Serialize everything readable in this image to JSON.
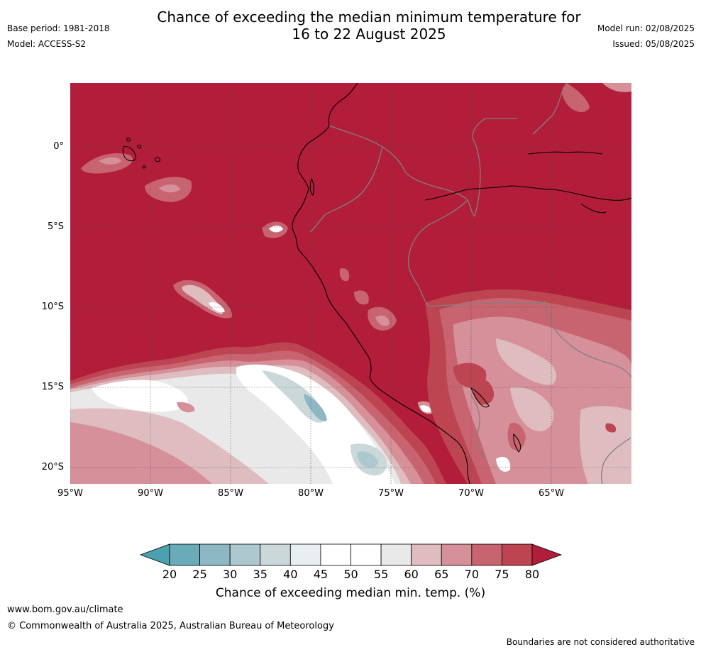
{
  "title_line1": "Chance of exceeding the median minimum temperature for",
  "title_line2": "16 to 22 August 2025",
  "base_period": "Base period: 1981-2018",
  "model": "Model: ACCESS-S2",
  "model_run": "Model run: 02/08/2025",
  "issued": "Issued: 05/08/2025",
  "map": {
    "lat_ticks": [
      "0°",
      "5°S",
      "10°S",
      "15°S",
      "20°S"
    ],
    "lon_ticks": [
      "95°W",
      "90°W",
      "85°W",
      "80°W",
      "75°W",
      "70°W",
      "65°W"
    ]
  },
  "colorbar": {
    "ticks": [
      "20",
      "25",
      "30",
      "35",
      "40",
      "45",
      "50",
      "55",
      "60",
      "65",
      "70",
      "75",
      "80"
    ],
    "colors": [
      "#6aabb8",
      "#8db7c3",
      "#adc8ce",
      "#cbd8da",
      "#e9eff1",
      "#ffffff",
      "#ffffff",
      "#e9e9e9",
      "#debcbf",
      "#d59099",
      "#c8646f",
      "#bd4552"
    ],
    "under_color": "#4aa1b0",
    "over_color": "#b21d39",
    "label": "Chance of exceeding median min. temp. (%)"
  },
  "footer": {
    "url": "www.bom.gov.au/climate",
    "copyright": "© Commonwealth of Australia 2025, Australian Bureau of Meteorology",
    "disclaimer": "Boundaries are not considered authoritative"
  }
}
